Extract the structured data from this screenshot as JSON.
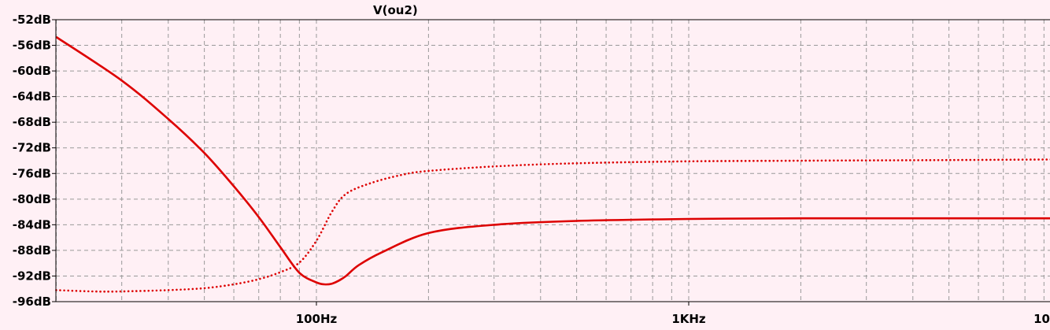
{
  "chart_data": {
    "type": "line",
    "title": "V(ou2)",
    "xscale": "log",
    "xlim": [
      20,
      10000
    ],
    "ylim": [
      -96,
      -52
    ],
    "y_ticks": [
      -52,
      -56,
      -60,
      -64,
      -68,
      -72,
      -76,
      -80,
      -84,
      -88,
      -92,
      -96
    ],
    "y_tick_labels": [
      "-52dB",
      "-56dB",
      "-60dB",
      "-64dB",
      "-68dB",
      "-72dB",
      "-76dB",
      "-80dB",
      "-84dB",
      "-88dB",
      "-92dB",
      "-96dB"
    ],
    "x_ticks": [
      100,
      1000,
      10000
    ],
    "x_tick_labels": [
      "100Hz",
      "1KHz",
      "10"
    ],
    "grid": true,
    "colors": {
      "trace": "#dd0000",
      "background": "#fff0f5",
      "grid": "#999999"
    },
    "series": [
      {
        "style": "solid",
        "x": [
          20,
          30,
          40,
          50,
          60,
          70,
          80,
          90,
          100,
          105,
          110,
          115,
          120,
          130,
          150,
          200,
          300,
          500,
          1000,
          2000,
          5000,
          10000
        ],
        "values": [
          -54.7,
          -61.5,
          -67.5,
          -72.8,
          -78.0,
          -82.8,
          -87.5,
          -91.5,
          -93.0,
          -93.3,
          -93.2,
          -92.7,
          -92.0,
          -90.3,
          -88.3,
          -85.3,
          -84.0,
          -83.4,
          -83.1,
          -83.0,
          -83.0,
          -83.0
        ]
      },
      {
        "style": "dotted",
        "x": [
          20,
          25,
          30,
          40,
          50,
          60,
          70,
          80,
          90,
          100,
          110,
          120,
          140,
          170,
          200,
          300,
          500,
          1000,
          2000,
          5000,
          10000
        ],
        "values": [
          -94.2,
          -94.4,
          -94.4,
          -94.2,
          -93.9,
          -93.3,
          -92.5,
          -91.4,
          -89.9,
          -86.5,
          -82.0,
          -79.2,
          -77.5,
          -76.2,
          -75.6,
          -74.9,
          -74.4,
          -74.1,
          -74.0,
          -73.9,
          -73.8
        ]
      }
    ]
  }
}
